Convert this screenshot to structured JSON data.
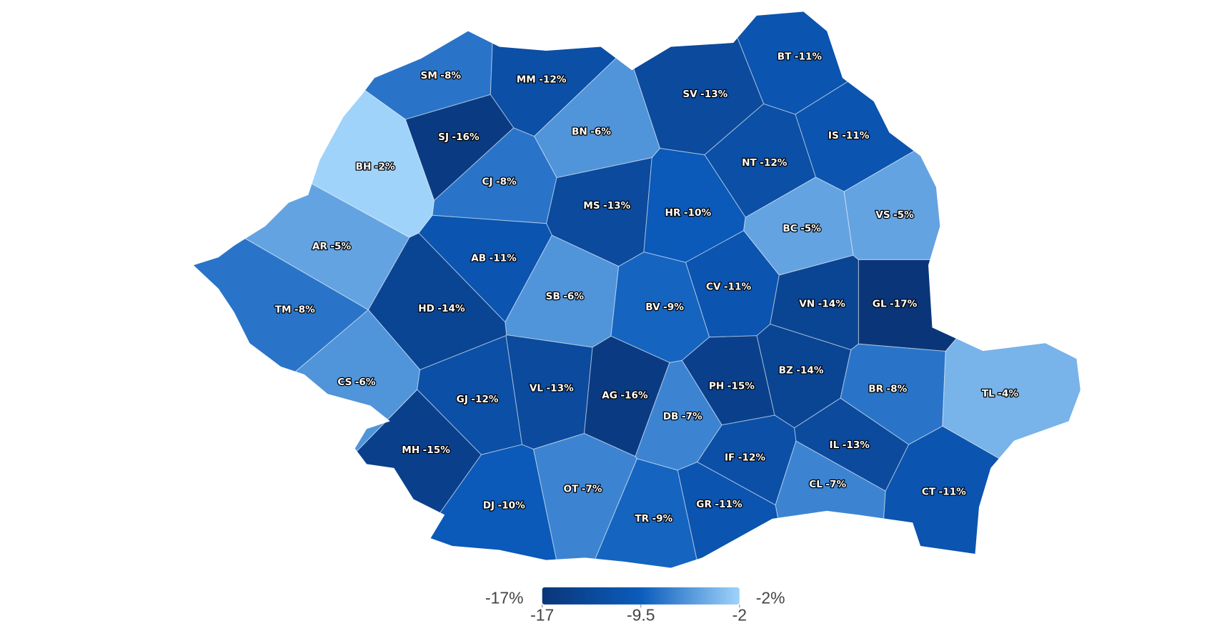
{
  "chart_data": {
    "type": "choropleth",
    "categories": [
      "SM",
      "MM",
      "BT",
      "SV",
      "SJ",
      "BN",
      "IS",
      "BH",
      "CJ",
      "NT",
      "VS",
      "MS",
      "HR",
      "BC",
      "AR",
      "AB",
      "CV",
      "SB",
      "GL",
      "VN",
      "HD",
      "TM",
      "BV",
      "PH",
      "BZ",
      "BR",
      "CS",
      "VL",
      "AG",
      "GJ",
      "TL",
      "DB",
      "MH",
      "IF",
      "IL",
      "OT",
      "CL",
      "CT",
      "DJ",
      "GR",
      "TR"
    ],
    "values": [
      -8,
      -12,
      -11,
      -13,
      -16,
      -6,
      -11,
      -2,
      -8,
      -12,
      -5,
      -13,
      -10,
      -5,
      -5,
      -11,
      -11,
      -6,
      -17,
      -14,
      -14,
      -8,
      -9,
      -15,
      -14,
      -8,
      -6,
      -13,
      -16,
      -12,
      -4,
      -7,
      -15,
      -12,
      -13,
      -7,
      -7,
      -11,
      -10,
      -11,
      -9
    ],
    "value_labels": [
      "-8%",
      "-12%",
      "-11%",
      "-13%",
      "-16%",
      "-6%",
      "-11%",
      "-2%",
      "-8%",
      "-12%",
      "-5%",
      "-13%",
      "-10%",
      "-5%",
      "-5%",
      "-11%",
      "-11%",
      "-6%",
      "-17%",
      "-14%",
      "-14%",
      "-8%",
      "-9%",
      "-15%",
      "-14%",
      "-8%",
      "-6%",
      "-13%",
      "-16%",
      "-12%",
      "-4%",
      "-7%",
      "-15%",
      "-12%",
      "-13%",
      "-7%",
      "-7%",
      "-11%",
      "-10%",
      "-11%",
      "-9%"
    ],
    "colorscale": [
      "#0a3679",
      "#0b5cbc",
      "#9fd3fa"
    ],
    "colorbar": {
      "lim": [
        -17,
        -2
      ],
      "ticks": [
        -17,
        -9.5,
        -2
      ],
      "min_label": "-17%",
      "max_label": "-2%"
    }
  }
}
